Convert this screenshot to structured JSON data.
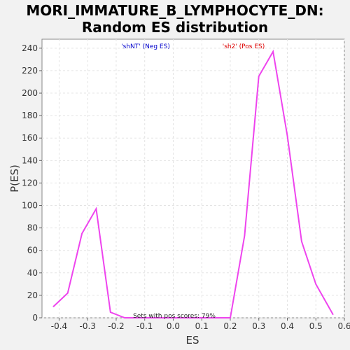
{
  "chart_data": {
    "type": "line",
    "title": [
      "MORI_IMMATURE_B_LYMPHOCYTE_DN:",
      "Random ES distribution"
    ],
    "xlabel": "ES",
    "ylabel": "P(ES)",
    "xlim": [
      -0.46,
      0.6
    ],
    "ylim": [
      0,
      248
    ],
    "x_ticks": [
      "-0.4",
      "-0.3",
      "-0.2",
      "-0.1",
      "0.0",
      "0.1",
      "0.2",
      "0.3",
      "0.4",
      "0.5",
      "0.6"
    ],
    "y_ticks": [
      "0",
      "20",
      "40",
      "60",
      "80",
      "100",
      "120",
      "140",
      "160",
      "180",
      "200",
      "220",
      "240"
    ],
    "grid": true,
    "series": [
      {
        "color": "#ee44ee",
        "x": [
          -0.42,
          -0.37,
          -0.32,
          -0.27,
          -0.22,
          -0.17,
          0.2,
          0.25,
          0.3,
          0.35,
          0.4,
          0.45,
          0.5,
          0.56
        ],
        "y": [
          10,
          22,
          75,
          97,
          5,
          0,
          0,
          73,
          215,
          237,
          162,
          68,
          30,
          3
        ]
      }
    ],
    "annotations": {
      "neg_label": "'shNT' (Neg ES)",
      "pos_label": "'sh2' (Pos ES)",
      "neg_color": "#0000cc",
      "pos_color": "#dd0000",
      "footer": "Sets with pos scores: 79%"
    }
  }
}
